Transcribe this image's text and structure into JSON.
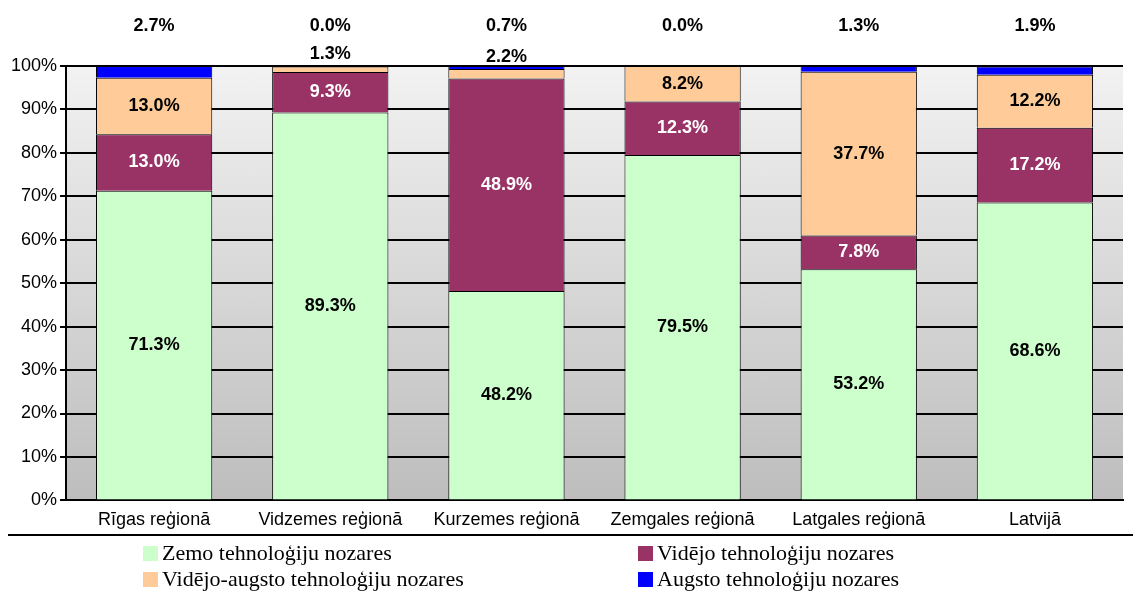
{
  "chart_data": {
    "type": "bar",
    "stacked": true,
    "categories": [
      "Rīgas reģionā",
      "Vidzemes reģionā",
      "Kurzemes reģionā",
      "Zemgales reģionā",
      "Latgales reģionā",
      "Latvijā"
    ],
    "series": [
      {
        "name": "Zemo tehnoloģiju nozares",
        "color": "#ccffcc",
        "values": [
          71.3,
          89.3,
          48.2,
          79.5,
          53.2,
          68.6
        ],
        "value_labels": [
          "71.3%",
          "89.3%",
          "48.2%",
          "79.5%",
          "53.2%",
          "68.6%"
        ]
      },
      {
        "name": "Vidējo tehnoloģiju nozares",
        "color": "#993366",
        "values": [
          13.0,
          9.3,
          48.9,
          12.3,
          7.8,
          17.2
        ],
        "value_labels": [
          "13.0%",
          "9.3%",
          "48.9%",
          "12.3%",
          "7.8%",
          "17.2%"
        ]
      },
      {
        "name": "Vidējo-augsto tehnoloģiju nozares",
        "color": "#ffcc99",
        "values": [
          13.0,
          1.3,
          2.2,
          8.2,
          37.7,
          12.2
        ],
        "value_labels": [
          "13.0%",
          "1.3%",
          "2.2%",
          "8.2%",
          "37.7%",
          "12.2%"
        ]
      },
      {
        "name": "Augsto tehnoloģiju nozares",
        "color": "#0000ff",
        "values": [
          2.7,
          0.0,
          0.7,
          0.0,
          1.3,
          1.9
        ],
        "value_labels": [
          "2.7%",
          "0.0%",
          "0.7%",
          "0.0%",
          "1.3%",
          "1.9%"
        ]
      }
    ],
    "ylim": [
      0,
      100
    ],
    "yticks": [
      {
        "value": 0,
        "label": "0%"
      },
      {
        "value": 10,
        "label": "10%"
      },
      {
        "value": 20,
        "label": "20%"
      },
      {
        "value": 30,
        "label": "30%"
      },
      {
        "value": 40,
        "label": "40%"
      },
      {
        "value": 50,
        "label": "50%"
      },
      {
        "value": 60,
        "label": "60%"
      },
      {
        "value": 70,
        "label": "70%"
      },
      {
        "value": 80,
        "label": "80%"
      },
      {
        "value": 90,
        "label": "90%"
      },
      {
        "value": 100,
        "label": "100%"
      }
    ],
    "grid": "y",
    "legend": "bottom"
  }
}
